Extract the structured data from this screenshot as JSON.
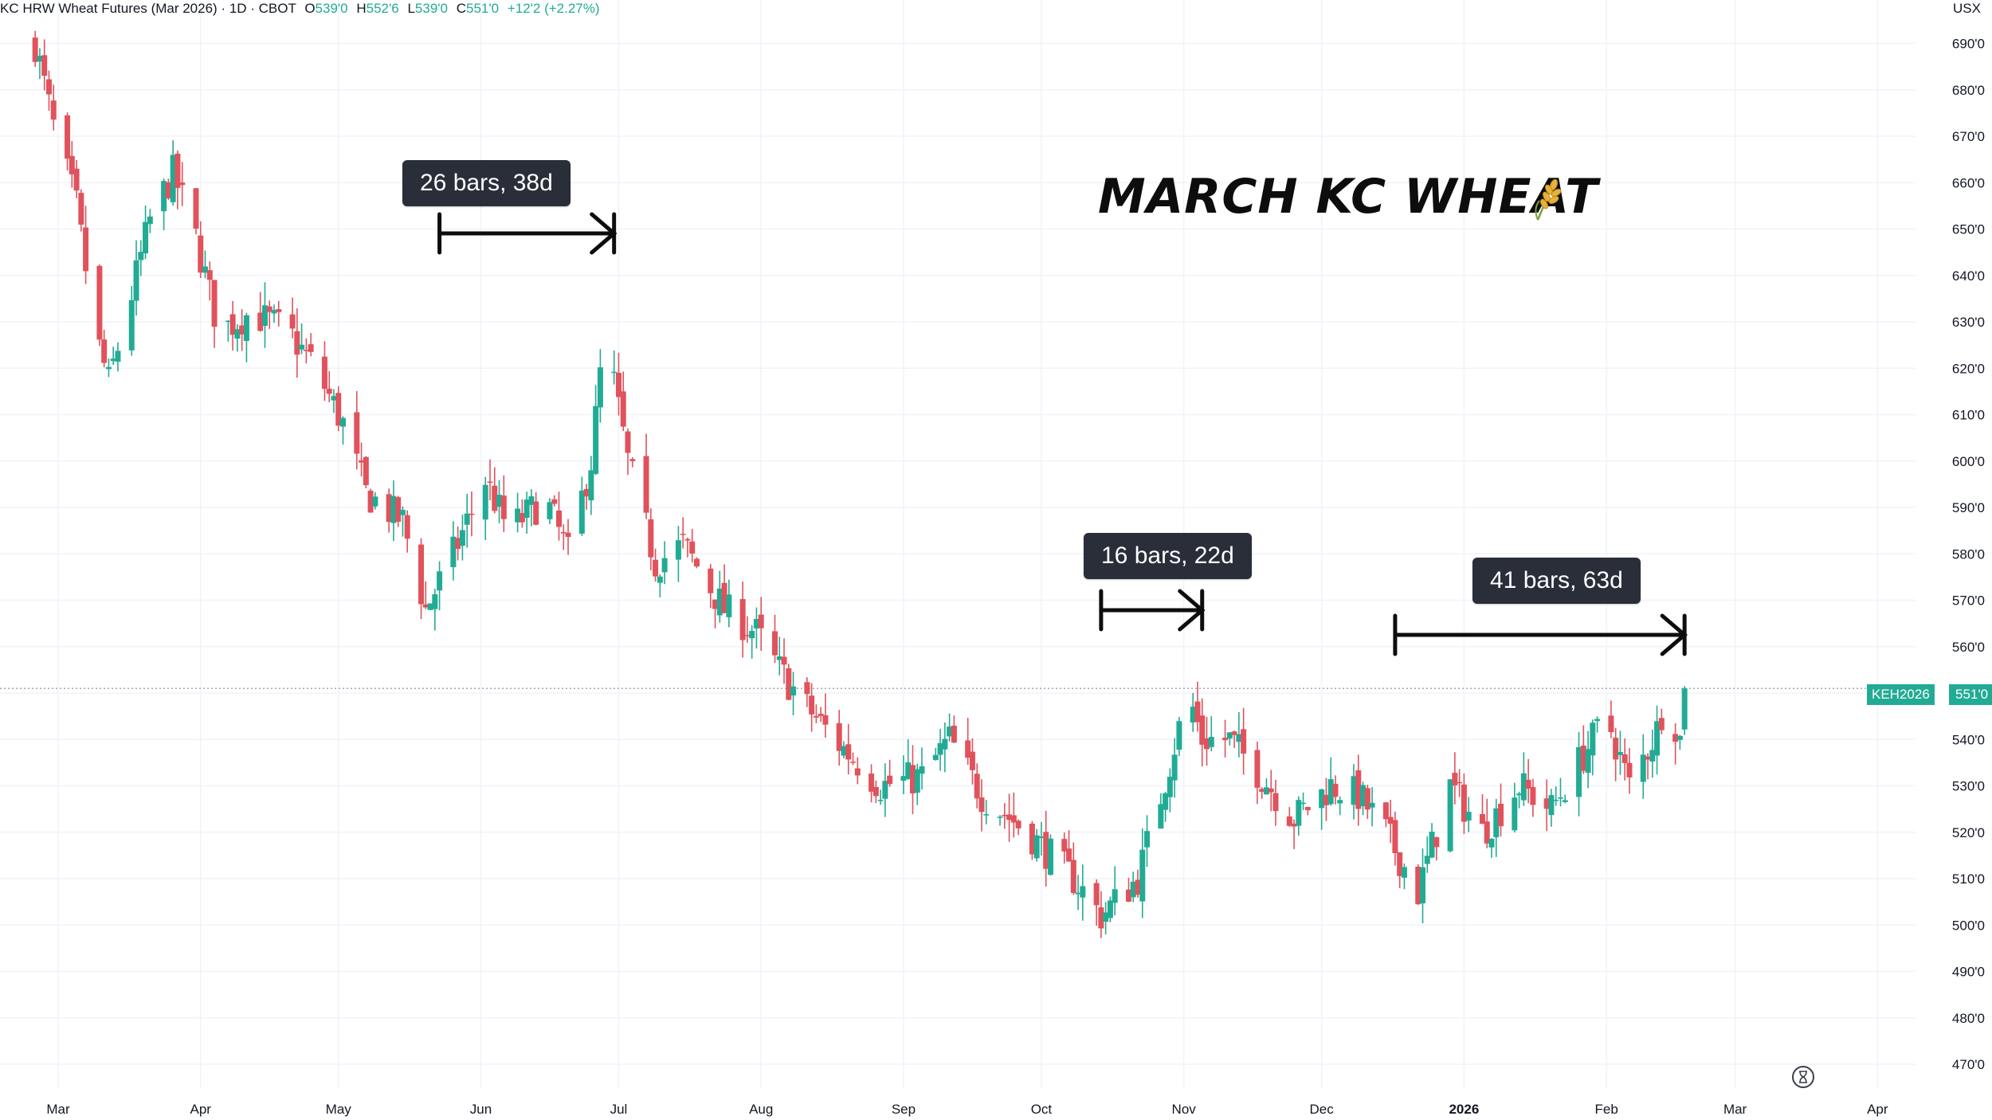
{
  "header": {
    "instrument": "KC HRW Wheat Futures (Mar 2026) · 1D · CBOT",
    "open_label": "O",
    "open": "539'0",
    "high_label": "H",
    "high": "552'6",
    "low_label": "L",
    "low": "539'0",
    "close_label": "C",
    "close": "551'0",
    "change": "+12'2 (+2.27%)"
  },
  "currency": "USX",
  "title": "MARCH KC WHEAT",
  "title_icon": "wheat-icon",
  "measures": [
    {
      "label": "26 bars, 38d"
    },
    {
      "label": "16 bars, 22d"
    },
    {
      "label": "41 bars, 63d"
    }
  ],
  "last_price": {
    "ticker": "KEH2026",
    "value": "551'0"
  },
  "colors": {
    "up": "#22ab94",
    "down": "#e0525c",
    "grid": "#f0f3fa",
    "text": "#131722"
  },
  "chart_data": {
    "type": "candlestick",
    "timeframe": "1D",
    "ylim": [
      465,
      695
    ],
    "y_ticks": [
      690,
      680,
      670,
      660,
      650,
      640,
      630,
      620,
      610,
      600,
      590,
      580,
      570,
      560,
      540,
      530,
      520,
      510,
      500,
      490,
      480,
      470
    ],
    "y_tick_labels": [
      "690'0",
      "680'0",
      "670'0",
      "660'0",
      "650'0",
      "640'0",
      "630'0",
      "620'0",
      "610'0",
      "600'0",
      "590'0",
      "580'0",
      "570'0",
      "560'0",
      "540'0",
      "530'0",
      "520'0",
      "510'0",
      "500'0",
      "490'0",
      "480'0",
      "470'0"
    ],
    "x_tick_labels": [
      "Mar",
      "Apr",
      "May",
      "Jun",
      "Jul",
      "Aug",
      "Sep",
      "Oct",
      "Nov",
      "Dec",
      "2026",
      "Feb",
      "Mar",
      "Apr"
    ],
    "x_tick_dates": [
      "2025-03-01",
      "2025-04-01",
      "2025-05-01",
      "2025-06-01",
      "2025-07-01",
      "2025-08-01",
      "2025-09-01",
      "2025-10-01",
      "2025-11-01",
      "2025-12-01",
      "2026-01-01",
      "2026-02-01",
      "2026-03-01",
      "2026-04-01"
    ],
    "last_price": 551,
    "grid": true,
    "path_key_points": [
      [
        "2025-02-24",
        690
      ],
      [
        "2025-02-28",
        672
      ],
      [
        "2025-03-05",
        655
      ],
      [
        "2025-03-09",
        628
      ],
      [
        "2025-03-12",
        617
      ],
      [
        "2025-03-16",
        632
      ],
      [
        "2025-03-21",
        652
      ],
      [
        "2025-03-26",
        662
      ],
      [
        "2025-03-31",
        648
      ],
      [
        "2025-04-05",
        628
      ],
      [
        "2025-04-12",
        632
      ],
      [
        "2025-04-20",
        628
      ],
      [
        "2025-04-26",
        620
      ],
      [
        "2025-05-02",
        608
      ],
      [
        "2025-05-07",
        593
      ],
      [
        "2025-05-15",
        587
      ],
      [
        "2025-05-20",
        568
      ],
      [
        "2025-05-26",
        580
      ],
      [
        "2025-06-02",
        596
      ],
      [
        "2025-06-07",
        585
      ],
      [
        "2025-06-15",
        592
      ],
      [
        "2025-06-20",
        580
      ],
      [
        "2025-06-25",
        600
      ],
      [
        "2025-06-28",
        628
      ],
      [
        "2025-07-03",
        600
      ],
      [
        "2025-07-09",
        578
      ],
      [
        "2025-07-15",
        582
      ],
      [
        "2025-07-24",
        568
      ],
      [
        "2025-07-31",
        563
      ],
      [
        "2025-08-05",
        555
      ],
      [
        "2025-08-10",
        548
      ],
      [
        "2025-08-17",
        540
      ],
      [
        "2025-08-27",
        530
      ],
      [
        "2025-09-05",
        532
      ],
      [
        "2025-09-11",
        540
      ],
      [
        "2025-09-18",
        528
      ],
      [
        "2025-09-28",
        520
      ],
      [
        "2025-10-08",
        510
      ],
      [
        "2025-10-14",
        502
      ],
      [
        "2025-10-22",
        510
      ],
      [
        "2025-10-29",
        535
      ],
      [
        "2025-11-02",
        550
      ],
      [
        "2025-11-05",
        540
      ],
      [
        "2025-11-11",
        540
      ],
      [
        "2025-11-18",
        532
      ],
      [
        "2025-11-25",
        523
      ],
      [
        "2025-12-03",
        530
      ],
      [
        "2025-12-09",
        528
      ],
      [
        "2025-12-15",
        520
      ],
      [
        "2025-12-22",
        507
      ],
      [
        "2025-12-29",
        530
      ],
      [
        "2026-01-05",
        520
      ],
      [
        "2026-01-13",
        530
      ],
      [
        "2026-01-20",
        525
      ],
      [
        "2026-01-26",
        535
      ],
      [
        "2026-02-01",
        545
      ],
      [
        "2026-02-06",
        530
      ],
      [
        "2026-02-12",
        542
      ],
      [
        "2026-02-14",
        550
      ],
      [
        "2026-02-17",
        540
      ],
      [
        "2026-02-18",
        551
      ]
    ],
    "annotations": [
      {
        "text": "26 bars, 38d",
        "from": "2025-05-23",
        "to": "2025-06-30",
        "price": 650
      },
      {
        "text": "16 bars, 22d",
        "from": "2025-10-14",
        "to": "2025-11-05",
        "price": 565
      },
      {
        "text": "41 bars, 63d",
        "from": "2025-12-17",
        "to": "2026-02-18",
        "price": 560
      }
    ]
  }
}
